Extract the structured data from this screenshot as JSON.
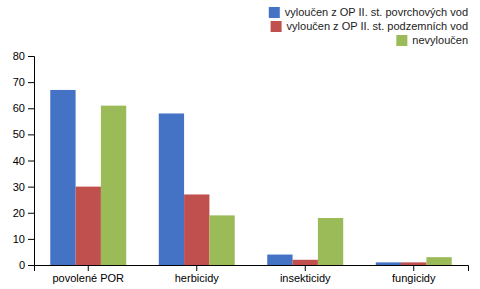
{
  "chart_data": {
    "type": "bar",
    "categories": [
      "povolené POR",
      "herbicidy",
      "insekticidy",
      "fungicidy"
    ],
    "series": [
      {
        "name": "vyloučen z OP II. st. povrchových vod",
        "color": "#4472C4",
        "values": [
          67,
          58,
          4,
          1
        ]
      },
      {
        "name": "vyloučen z OP II. st. podzemních vod",
        "color": "#C0504D",
        "values": [
          30,
          27,
          2,
          1
        ]
      },
      {
        "name": "nevyloučen",
        "color": "#9BBB59",
        "values": [
          61,
          19,
          18,
          3
        ]
      }
    ],
    "ylim": [
      0,
      80
    ],
    "yticks": [
      0,
      10,
      20,
      30,
      40,
      50,
      60,
      70,
      80
    ],
    "grid": false,
    "legend": "upper right"
  }
}
